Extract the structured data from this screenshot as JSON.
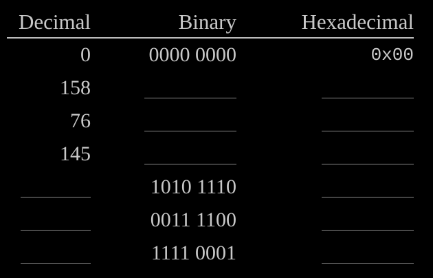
{
  "headers": {
    "decimal": "Decimal",
    "binary": "Binary",
    "hex": "Hexadecimal"
  },
  "rows": [
    {
      "decimal": "0",
      "binary": "0000 0000",
      "hex": "0x00"
    },
    {
      "decimal": "158",
      "binary": "",
      "hex": ""
    },
    {
      "decimal": "76",
      "binary": "",
      "hex": ""
    },
    {
      "decimal": "145",
      "binary": "",
      "hex": ""
    },
    {
      "decimal": "",
      "binary": "1010 1110",
      "hex": ""
    },
    {
      "decimal": "",
      "binary": "0011 1100",
      "hex": ""
    },
    {
      "decimal": "",
      "binary": "1111 0001",
      "hex": ""
    }
  ],
  "colors": {
    "background": "#000000",
    "text": "#c8c8c8",
    "rule": "#bdbdbd",
    "blank_line": "#8a8a8a"
  }
}
